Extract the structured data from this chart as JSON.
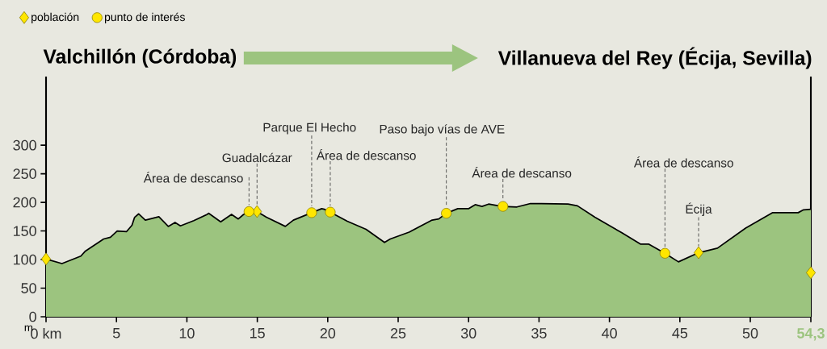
{
  "chart_data": {
    "type": "area",
    "ylabel": "m",
    "xlim": [
      0,
      54.3
    ],
    "ylim": [
      0,
      420
    ],
    "xticks": [
      {
        "value": 0,
        "label": "0 km"
      },
      5,
      10,
      15,
      20,
      25,
      30,
      35,
      40,
      45,
      50,
      {
        "value": 54.3,
        "label": "54,3"
      }
    ],
    "yticks": [
      0,
      50,
      100,
      150,
      200,
      250,
      300
    ],
    "legend": "top left",
    "series": [
      {
        "color": "#9cc47f",
        "x": [
          0,
          1.13,
          2.47,
          2.8,
          4.09,
          4.57,
          5.05,
          5.72,
          6.1,
          6.29,
          6.58,
          7.05,
          8.01,
          8.68,
          9.16,
          9.54,
          10.49,
          11.44,
          11.54,
          12.4,
          13.17,
          13.65,
          14.03,
          14.41,
          14.98,
          15.65,
          16.99,
          17.56,
          18.86,
          19.57,
          19.76,
          20.18,
          21.39,
          22.72,
          24.03,
          24.44,
          25.78,
          27.41,
          27.88,
          28.42,
          29.23,
          29.99,
          30.47,
          30.95,
          31.42,
          31.9,
          32.44,
          33.43,
          34.39,
          35.15,
          37.06,
          37.73,
          38.97,
          40.31,
          40.88,
          42.22,
          42.8,
          43.94,
          44.9,
          46.33,
          47.67,
          49.67,
          51.59,
          53.4,
          53.78,
          54.3
        ],
        "values": [
          101,
          93,
          106,
          115,
          136,
          139,
          150,
          149,
          160,
          174,
          180,
          169,
          175,
          158,
          165,
          159,
          168,
          179,
          181,
          166,
          179,
          171,
          179,
          184,
          184,
          174,
          158,
          169,
          182,
          189,
          188,
          183,
          167,
          153,
          130,
          136,
          148,
          169,
          171,
          181,
          189,
          189,
          196,
          193,
          197,
          195,
          193,
          192,
          198,
          198,
          197,
          194,
          174,
          155,
          147,
          127,
          127,
          111,
          96,
          112,
          120,
          155,
          182,
          182,
          187,
          188
        ]
      },
      {
        "name": "población",
        "type": "scatter",
        "marker": "diamond",
        "color": "#ffe600",
        "x": [
          0,
          14.98,
          46.33,
          54.3
        ],
        "values": [
          101,
          184,
          112,
          77
        ]
      },
      {
        "name": "punto de interés",
        "type": "scatter",
        "marker": "circle",
        "color": "#ffe600",
        "x": [
          14.41,
          18.86,
          20.18,
          28.42,
          32.44,
          43.94
        ],
        "values": [
          184,
          182,
          183,
          181,
          193,
          111
        ]
      }
    ],
    "annotations": [
      {
        "text": "Área de descanso",
        "x": 14.41,
        "y": 184
      },
      {
        "text": "Guadalcázar",
        "x": 14.98,
        "y": 184
      },
      {
        "text": "Parque El Hecho",
        "x": 18.86,
        "y": 182
      },
      {
        "text": "Área de descanso",
        "x": 20.18,
        "y": 183
      },
      {
        "text": "Paso bajo vías de AVE",
        "x": 28.42,
        "y": 181
      },
      {
        "text": "Área de descanso",
        "x": 32.44,
        "y": 193
      },
      {
        "text": "Área de descanso",
        "x": 43.94,
        "y": 111
      },
      {
        "text": "Écija",
        "x": 46.33,
        "y": 112
      },
      "Valchillón (Córdoba)",
      "Villanueva del Rey (Écija, Sevilla)"
    ]
  }
}
